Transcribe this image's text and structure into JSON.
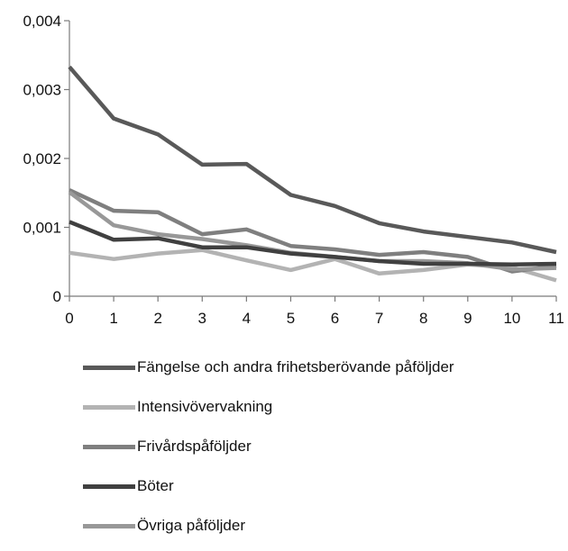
{
  "chart_data": {
    "type": "line",
    "x": [
      0,
      1,
      2,
      3,
      4,
      5,
      6,
      7,
      8,
      9,
      10,
      11
    ],
    "ylim": [
      0,
      0.004
    ],
    "yticks": [
      "0",
      "0,001",
      "0,002",
      "0,003",
      "0,004"
    ],
    "xticks": [
      "0",
      "1",
      "2",
      "3",
      "4",
      "5",
      "6",
      "7",
      "8",
      "9",
      "10",
      "11"
    ],
    "grid": false,
    "legend_position": "bottom",
    "series": [
      {
        "name": "Fängelse och andra frihetsberövande påföljder",
        "color": "#595959",
        "values": [
          0.00333,
          0.00258,
          0.00235,
          0.00191,
          0.00192,
          0.00147,
          0.00131,
          0.00106,
          0.00094,
          0.00086,
          0.00078,
          0.00064
        ]
      },
      {
        "name": "Intensivövervakning",
        "color": "#b3b3b3",
        "values": [
          0.00063,
          0.00054,
          0.00062,
          0.00067,
          0.00052,
          0.00038,
          0.00054,
          0.00033,
          0.00038,
          0.00046,
          0.00042,
          0.00023
        ]
      },
      {
        "name": "Frivårdspåföljder",
        "color": "#7f7f7f",
        "values": [
          0.00154,
          0.00124,
          0.00122,
          0.0009,
          0.00097,
          0.00073,
          0.00068,
          0.0006,
          0.00064,
          0.00057,
          0.00036,
          0.00044
        ]
      },
      {
        "name": "Böter",
        "color": "#404040",
        "values": [
          0.00108,
          0.00082,
          0.00084,
          0.00071,
          0.00071,
          0.00062,
          0.00057,
          0.00051,
          0.00047,
          0.00047,
          0.00046,
          0.00047
        ]
      },
      {
        "name": "Övriga påföljder",
        "color": "#989898",
        "values": [
          0.00151,
          0.00103,
          0.0009,
          0.00083,
          0.00074,
          0.00063,
          0.00057,
          0.00051,
          0.00051,
          0.00048,
          0.00039,
          0.00041
        ]
      }
    ]
  }
}
